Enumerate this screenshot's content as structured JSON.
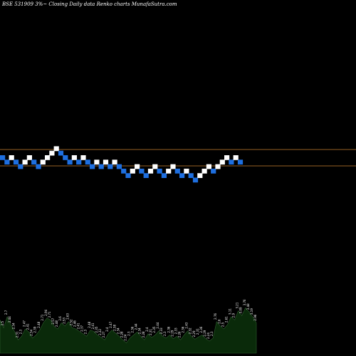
{
  "chart_data": {
    "type": "renko",
    "title": "BSE 531909 3%~  Closing Daily data  Renko  charts MunafaSutra.com",
    "colors": {
      "background": "#000000",
      "up_brick": "#ffffff",
      "down_brick": "#1e6fe0",
      "reference_line": "#c87f32",
      "volume_fill": "#0a2a0a",
      "volume_stroke": "#2f5f2f",
      "label": "#ffffff"
    },
    "reference_levels": [
      210,
      233
    ],
    "bricks": [
      {
        "level": 0,
        "dir": "down"
      },
      {
        "level": -1,
        "dir": "down"
      },
      {
        "level": 0,
        "dir": "up"
      },
      {
        "level": -1,
        "dir": "down"
      },
      {
        "level": -2,
        "dir": "down"
      },
      {
        "level": -1,
        "dir": "up"
      },
      {
        "level": 0,
        "dir": "up"
      },
      {
        "level": -1,
        "dir": "down"
      },
      {
        "level": -2,
        "dir": "down"
      },
      {
        "level": -1,
        "dir": "up"
      },
      {
        "level": 0,
        "dir": "up"
      },
      {
        "level": 1,
        "dir": "up"
      },
      {
        "level": 2,
        "dir": "up"
      },
      {
        "level": 1,
        "dir": "down"
      },
      {
        "level": 0,
        "dir": "down"
      },
      {
        "level": -1,
        "dir": "down"
      },
      {
        "level": 0,
        "dir": "up"
      },
      {
        "level": -1,
        "dir": "down"
      },
      {
        "level": 0,
        "dir": "up"
      },
      {
        "level": -1,
        "dir": "down"
      },
      {
        "level": -2,
        "dir": "down"
      },
      {
        "level": -1,
        "dir": "up"
      },
      {
        "level": -2,
        "dir": "down"
      },
      {
        "level": -1,
        "dir": "up"
      },
      {
        "level": -2,
        "dir": "down"
      },
      {
        "level": -1,
        "dir": "up"
      },
      {
        "level": -2,
        "dir": "down"
      },
      {
        "level": -3,
        "dir": "down"
      },
      {
        "level": -4,
        "dir": "down"
      },
      {
        "level": -3,
        "dir": "up"
      },
      {
        "level": -2,
        "dir": "up"
      },
      {
        "level": -3,
        "dir": "down"
      },
      {
        "level": -4,
        "dir": "down"
      },
      {
        "level": -3,
        "dir": "up"
      },
      {
        "level": -2,
        "dir": "up"
      },
      {
        "level": -3,
        "dir": "down"
      },
      {
        "level": -4,
        "dir": "down"
      },
      {
        "level": -3,
        "dir": "up"
      },
      {
        "level": -2,
        "dir": "up"
      },
      {
        "level": -3,
        "dir": "down"
      },
      {
        "level": -4,
        "dir": "down"
      },
      {
        "level": -3,
        "dir": "up"
      },
      {
        "level": -4,
        "dir": "down"
      },
      {
        "level": -5,
        "dir": "down"
      },
      {
        "level": -4,
        "dir": "up"
      },
      {
        "level": -3,
        "dir": "up"
      },
      {
        "level": -2,
        "dir": "up"
      },
      {
        "level": -3,
        "dir": "down"
      },
      {
        "level": -2,
        "dir": "up"
      },
      {
        "level": -1,
        "dir": "up"
      },
      {
        "level": 0,
        "dir": "up"
      },
      {
        "level": -1,
        "dir": "down"
      },
      {
        "level": 0,
        "dir": "up"
      },
      {
        "level": -1,
        "dir": "down"
      }
    ],
    "volume": {
      "values": [
        55,
        42,
        60,
        47,
        36,
        22,
        28,
        40,
        35,
        25,
        30,
        38,
        50,
        58,
        55,
        44,
        40,
        50,
        45,
        52,
        42,
        40,
        36,
        32,
        28,
        38,
        36,
        30,
        26,
        22,
        32,
        38,
        33,
        28,
        22,
        17,
        25,
        30,
        35,
        28,
        22,
        32,
        26,
        30,
        37,
        28,
        25,
        30,
        24,
        28,
        22,
        30,
        37,
        28,
        23,
        27,
        30,
        24,
        20,
        25,
        52,
        45,
        40,
        47,
        60,
        55,
        70,
        62,
        75,
        68,
        60,
        50
      ],
      "labels": [
        "2.66",
        "2.5",
        "2.7",
        "2.44",
        "2.34",
        "2.31",
        "2.3",
        "2.47",
        "2.41",
        "2.34",
        "2.39",
        "2.48",
        "2.71",
        "2.94",
        "2.71",
        "2.57",
        "2.48",
        "2.6",
        "2.53",
        "2.63",
        "2.52",
        "2.46",
        "2.41",
        "2.37",
        "2.3",
        "2.48",
        "2.41",
        "2.35",
        "2.32",
        "2.27",
        "2.4",
        "2.47",
        "2.38",
        "2.34",
        "2.28",
        "2.24",
        "2.3",
        "2.36",
        "2.44",
        "2.34",
        "2.28",
        "2.4",
        "2.31",
        "2.35",
        "2.44",
        "2.33",
        "2.3",
        "2.36",
        "2.29",
        "2.33",
        "2.26",
        "2.36",
        "2.43",
        "2.32",
        "2.29",
        "2.31",
        "2.36",
        "2.29",
        "2.24",
        "2.3",
        "2.76",
        "2.6",
        "2.5",
        "2.61",
        "3.11",
        "2.9",
        "3.21",
        "3.09",
        "3.76",
        "3.48",
        "3.19",
        "2.96"
      ]
    }
  }
}
